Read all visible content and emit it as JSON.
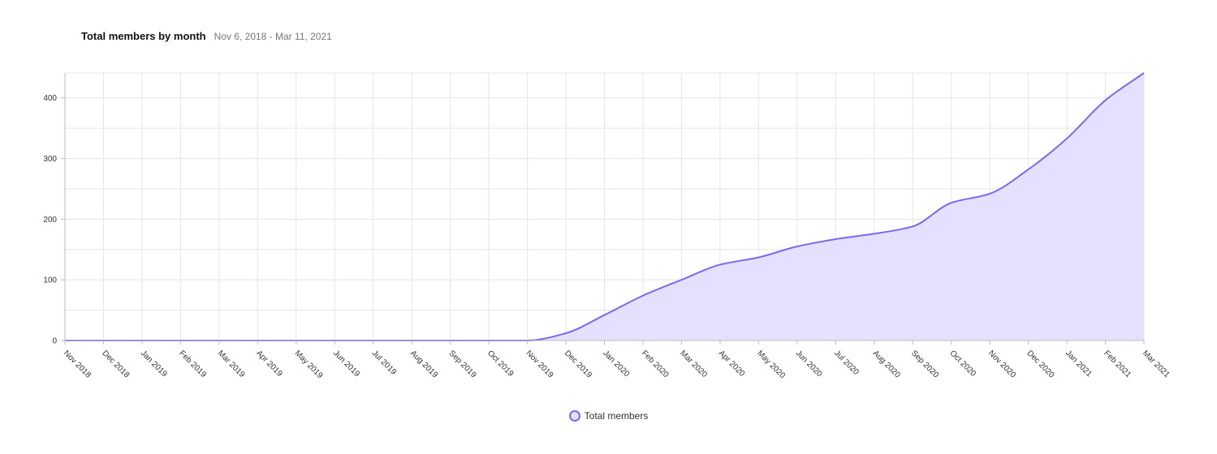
{
  "header": {
    "title": "Total members by month",
    "date_range": "Nov 6, 2018 - Mar 11, 2021"
  },
  "colors": {
    "line": "#7b68ee",
    "fill": "#e4e0fd",
    "grid": "#e5e5e5",
    "axis": "#bbbbbb"
  },
  "chart_data": {
    "type": "area",
    "title": "Total members by month",
    "subtitle": "Nov 6, 2018 - Mar 11, 2021",
    "x": [
      "Nov 2018",
      "Dec 2018",
      "Jan 2019",
      "Feb 2019",
      "Mar 2019",
      "Apr 2019",
      "May 2019",
      "Jun 2019",
      "Jul 2019",
      "Aug 2019",
      "Sep 2019",
      "Oct 2019",
      "Nov 2019",
      "Dec 2019",
      "Jan 2020",
      "Feb 2020",
      "Mar 2020",
      "Apr 2020",
      "May 2020",
      "Jun 2020",
      "Jul 2020",
      "Aug 2020",
      "Sep 2020",
      "Oct 2020",
      "Nov 2020",
      "Dec 2020",
      "Jan 2021",
      "Feb 2021",
      "Mar 2021"
    ],
    "series": [
      {
        "name": "Total members",
        "values": [
          0,
          0,
          0,
          0,
          0,
          0,
          0,
          0,
          0,
          0,
          0,
          0,
          0,
          12,
          42,
          74,
          100,
          125,
          137,
          155,
          167,
          176,
          188,
          227,
          242,
          282,
          333,
          396,
          441
        ]
      }
    ],
    "y_ticks": [
      0,
      100,
      200,
      300,
      400
    ],
    "ylim": [
      0,
      441
    ],
    "grid": true,
    "legend": "bottom-center"
  },
  "legend": {
    "label": "Total members"
  }
}
